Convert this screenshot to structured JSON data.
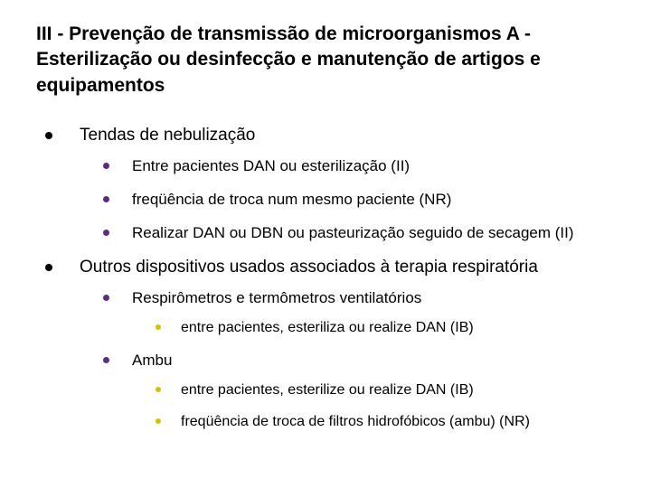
{
  "title_fontsize": 21,
  "title_color": "#000000",
  "background_color": "#ffffff",
  "bullet_colors": {
    "level1": "#000000",
    "level2": "#5a2d82",
    "level3": "#d4c200"
  },
  "font_sizes": {
    "level1": 19,
    "level2": 17,
    "level3": 16
  },
  "title": "III - Prevenção de transmissão de microorganismos A - Esterilização ou desinfecção e manutenção de artigos e equipamentos",
  "items": [
    {
      "text": "Tendas de nebulização",
      "children": [
        {
          "text": "Entre pacientes DAN ou esterilização (II)"
        },
        {
          "text": "freqüência de troca num mesmo paciente (NR)"
        },
        {
          "text": "Realizar DAN ou DBN ou pasteurização seguido de secagem (II)"
        }
      ]
    },
    {
      "text": "Outros dispositivos usados associados à terapia respiratória",
      "children": [
        {
          "text": "Respirômetros e termômetros ventilatórios",
          "children": [
            {
              "text": "entre pacientes, esteriliza ou realize DAN  (IB)"
            }
          ]
        },
        {
          "text": "Ambu",
          "children": [
            {
              "text": "entre pacientes, esterilize ou realize DAN (IB)"
            },
            {
              "text": "freqüência de troca de filtros hidrofóbicos (ambu) (NR)"
            }
          ]
        }
      ]
    }
  ]
}
